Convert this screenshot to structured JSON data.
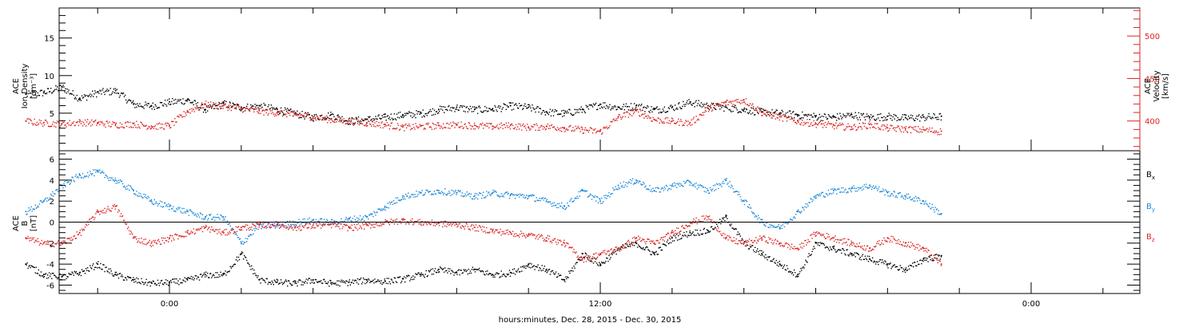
{
  "chart_data": {
    "type": "scatter",
    "xlabel": "hours:minutes, Dec. 28, 2015 - Dec. 30, 2015",
    "x_ticks": [
      "0:00",
      "12:00",
      "0:00"
    ],
    "panels": [
      {
        "id": "plasma",
        "ylabel_left": [
          "ACE",
          "Ion Density",
          "[cm⁻³]"
        ],
        "ylabel_right": [
          "ACE",
          "Velocity",
          "[km/s]"
        ],
        "ylim_left": [
          0,
          19
        ],
        "yticks_left": [
          5,
          10,
          15
        ],
        "ylim_right": [
          365,
          533
        ],
        "yticks_right": [
          400,
          450,
          500
        ],
        "series": [
          {
            "name": "Ion Density",
            "color": "#000000",
            "axis": "left",
            "x": [
              -4.0,
              -3.5,
              -3.0,
              -2.5,
              -2.0,
              -1.5,
              -1.0,
              -0.5,
              0.0,
              0.5,
              1.0,
              1.5,
              2.0,
              2.5,
              3.0,
              3.5,
              4.0,
              4.5,
              5.0,
              5.5,
              6.0,
              6.5,
              7.0,
              7.5,
              8.0,
              8.5,
              9.0,
              9.5,
              10.0,
              10.5,
              11.0,
              11.5,
              12.0,
              12.5,
              13.0,
              13.5,
              14.0,
              14.5,
              15.0,
              15.5,
              16.0,
              16.5,
              17.0,
              17.5,
              18.0,
              18.5,
              19.0,
              19.5,
              20.0,
              20.5,
              21.0,
              21.5
            ],
            "y": [
              7.5,
              7.8,
              8.5,
              7.0,
              7.8,
              8.0,
              6.2,
              6.0,
              6.5,
              6.8,
              5.5,
              6.3,
              5.8,
              6.0,
              5.5,
              5.0,
              4.5,
              4.8,
              4.0,
              4.2,
              4.5,
              4.8,
              5.0,
              5.5,
              5.8,
              5.5,
              5.6,
              6.0,
              5.8,
              5.2,
              5.0,
              5.5,
              6.2,
              5.8,
              6.0,
              5.5,
              5.8,
              6.5,
              6.0,
              5.8,
              5.5,
              5.2,
              5.0,
              4.8,
              4.6,
              4.5,
              4.8,
              4.5,
              4.6,
              4.4,
              4.5,
              4.6
            ]
          },
          {
            "name": "Velocity",
            "color": "#dd2222",
            "axis": "right",
            "x": [
              -4.0,
              -3.5,
              -3.0,
              -2.5,
              -2.0,
              -1.5,
              -1.0,
              -0.5,
              0.0,
              0.5,
              1.0,
              1.5,
              2.0,
              2.5,
              3.0,
              3.5,
              4.0,
              4.5,
              5.0,
              5.5,
              6.0,
              6.5,
              7.0,
              7.5,
              8.0,
              8.5,
              9.0,
              9.5,
              10.0,
              10.5,
              11.0,
              11.5,
              12.0,
              12.5,
              13.0,
              13.5,
              14.0,
              14.5,
              15.0,
              15.5,
              16.0,
              16.5,
              17.0,
              17.5,
              18.0,
              18.5,
              19.0,
              19.5,
              20.0,
              20.5,
              21.0,
              21.5
            ],
            "y": [
              400,
              398,
              397,
              399,
              398,
              396,
              397,
              394,
              395,
              412,
              420,
              418,
              415,
              412,
              410,
              408,
              405,
              402,
              400,
              398,
              396,
              393,
              394,
              395,
              396,
              395,
              394,
              395,
              393,
              394,
              392,
              390,
              388,
              405,
              412,
              402,
              400,
              398,
              415,
              422,
              425,
              410,
              405,
              400,
              397,
              395,
              393,
              396,
              392,
              391,
              390,
              388
            ]
          }
        ]
      },
      {
        "id": "magnetic",
        "ylabel_left": [
          "ACE",
          "B",
          "[nT]"
        ],
        "ylim": [
          -6.8,
          6.8
        ],
        "yticks": [
          -6,
          -4,
          -2,
          0,
          2,
          4,
          6
        ],
        "legend": [
          "Bx",
          "By",
          "Bz"
        ],
        "series": [
          {
            "name": "Bx",
            "color": "#000000",
            "x": [
              -4.0,
              -3.5,
              -3.0,
              -2.5,
              -2.0,
              -1.5,
              -1.0,
              -0.5,
              0.0,
              0.5,
              1.0,
              1.5,
              2.0,
              2.5,
              3.0,
              3.5,
              4.0,
              4.5,
              5.0,
              5.5,
              6.0,
              6.5,
              7.0,
              7.5,
              8.0,
              8.5,
              9.0,
              9.5,
              10.0,
              10.5,
              11.0,
              11.5,
              12.0,
              12.5,
              13.0,
              13.5,
              14.0,
              14.5,
              15.0,
              15.5,
              16.0,
              16.5,
              17.0,
              17.5,
              18.0,
              18.5,
              19.0,
              19.5,
              20.0,
              20.5,
              21.0,
              21.5
            ],
            "y": [
              -4.0,
              -5.0,
              -5.2,
              -4.8,
              -4.0,
              -5.0,
              -5.5,
              -5.8,
              -5.7,
              -5.5,
              -5.0,
              -5.0,
              -3.0,
              -5.5,
              -5.7,
              -5.8,
              -5.5,
              -5.8,
              -5.7,
              -5.5,
              -5.6,
              -5.4,
              -5.0,
              -4.5,
              -4.8,
              -4.5,
              -5.0,
              -4.8,
              -4.0,
              -4.5,
              -5.5,
              -3.0,
              -4.0,
              -2.5,
              -2.0,
              -3.0,
              -1.5,
              -1.0,
              -0.8,
              0.5,
              -2.0,
              -3.0,
              -4.0,
              -5.0,
              -2.0,
              -2.5,
              -3.0,
              -3.5,
              -4.0,
              -4.5,
              -3.5,
              -3.2
            ]
          },
          {
            "name": "By",
            "color": "#1a86d8",
            "x": [
              -4.0,
              -3.5,
              -3.0,
              -2.5,
              -2.0,
              -1.5,
              -1.0,
              -0.5,
              0.0,
              0.5,
              1.0,
              1.5,
              2.0,
              2.5,
              3.0,
              3.5,
              4.0,
              4.5,
              5.0,
              5.5,
              6.0,
              6.5,
              7.0,
              7.5,
              8.0,
              8.5,
              9.0,
              9.5,
              10.0,
              10.5,
              11.0,
              11.5,
              12.0,
              12.5,
              13.0,
              13.5,
              14.0,
              14.5,
              15.0,
              15.5,
              16.0,
              16.5,
              17.0,
              17.5,
              18.0,
              18.5,
              19.0,
              19.5,
              20.0,
              20.5,
              21.0,
              21.5
            ],
            "y": [
              1.0,
              2.0,
              3.5,
              4.5,
              4.8,
              4.0,
              3.0,
              2.0,
              1.5,
              1.0,
              0.5,
              0.5,
              -2.0,
              -0.2,
              -0.3,
              0.0,
              0.2,
              0.0,
              0.3,
              0.5,
              1.5,
              2.5,
              2.8,
              3.0,
              2.8,
              2.5,
              2.8,
              2.6,
              2.5,
              2.0,
              1.5,
              3.0,
              2.0,
              3.5,
              4.0,
              3.0,
              3.5,
              3.8,
              3.0,
              4.0,
              2.0,
              0.0,
              -0.5,
              1.0,
              2.5,
              3.0,
              3.2,
              3.5,
              2.8,
              2.5,
              2.0,
              0.8
            ]
          },
          {
            "name": "Bz",
            "color": "#dd2222",
            "x": [
              -4.0,
              -3.5,
              -3.0,
              -2.5,
              -2.0,
              -1.5,
              -1.0,
              -0.5,
              0.0,
              0.5,
              1.0,
              1.5,
              2.0,
              2.5,
              3.0,
              3.5,
              4.0,
              4.5,
              5.0,
              5.5,
              6.0,
              6.5,
              7.0,
              7.5,
              8.0,
              8.5,
              9.0,
              9.5,
              10.0,
              10.5,
              11.0,
              11.5,
              12.0,
              12.5,
              13.0,
              13.5,
              14.0,
              14.5,
              15.0,
              15.5,
              16.0,
              16.5,
              17.0,
              17.5,
              18.0,
              18.5,
              19.0,
              19.5,
              20.0,
              20.5,
              21.0,
              21.5
            ],
            "y": [
              -1.5,
              -2.0,
              -2.0,
              -1.0,
              1.0,
              1.5,
              -1.5,
              -2.0,
              -1.5,
              -1.0,
              -0.5,
              -1.0,
              -0.5,
              -0.3,
              -0.2,
              -0.5,
              -0.3,
              -0.2,
              -0.5,
              -0.3,
              0.0,
              0.2,
              0.0,
              -0.1,
              -0.2,
              -0.5,
              -0.8,
              -1.0,
              -1.2,
              -1.5,
              -2.0,
              -3.5,
              -3.0,
              -2.5,
              -1.5,
              -2.0,
              -1.0,
              0.0,
              0.5,
              -1.5,
              -2.0,
              -1.5,
              -2.0,
              -2.5,
              -1.0,
              -1.5,
              -2.0,
              -2.5,
              -1.5,
              -2.0,
              -2.5,
              -4.0
            ]
          }
        ]
      }
    ]
  }
}
